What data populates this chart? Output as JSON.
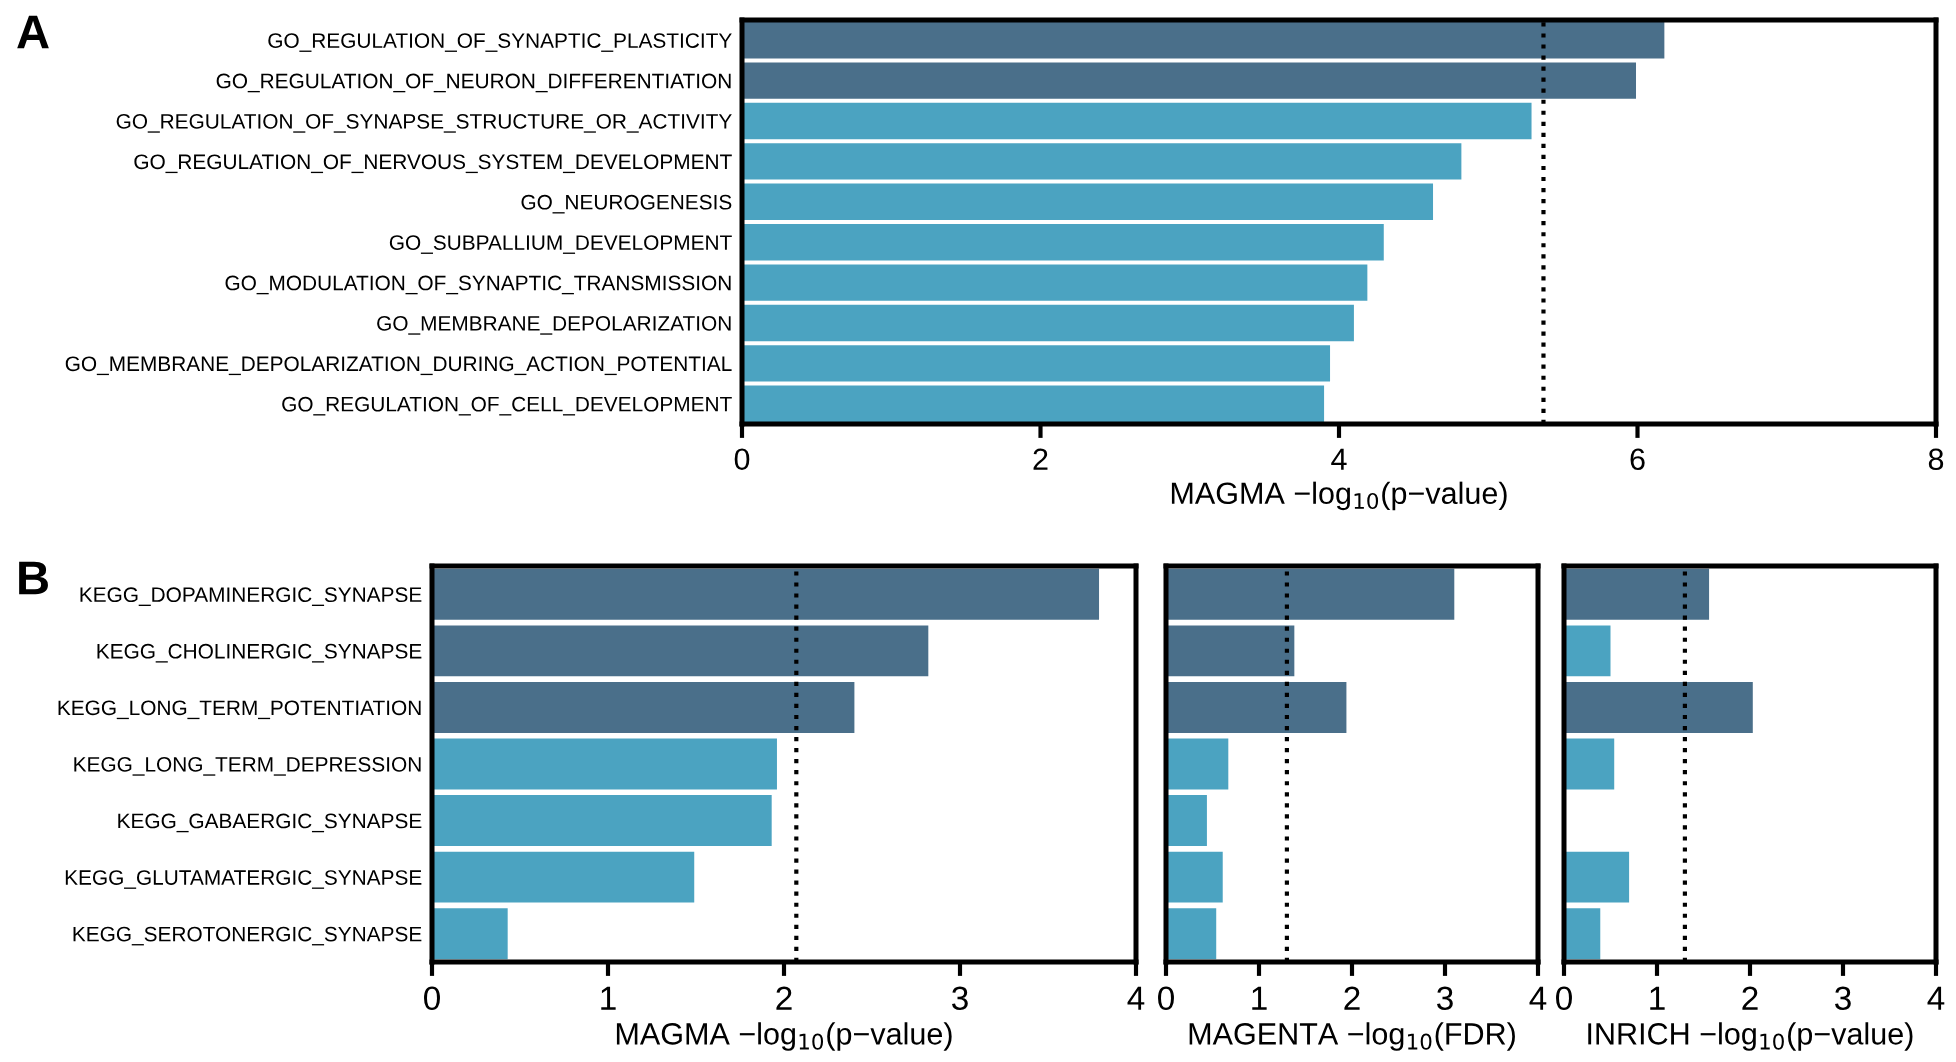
{
  "chart_data": [
    {
      "type": "bar",
      "orientation": "horizontal",
      "title": "A",
      "categories": [
        "GO_REGULATION_OF_SYNAPTIC_PLASTICITY",
        "GO_REGULATION_OF_NEURON_DIFFERENTIATION",
        "GO_REGULATION_OF_SYNAPSE_STRUCTURE_OR_ACTIVITY",
        "GO_REGULATION_OF_NERVOUS_SYSTEM_DEVELOPMENT",
        "GO_NEUROGENESIS",
        "GO_SUBPALLIUM_DEVELOPMENT",
        "GO_MODULATION_OF_SYNAPTIC_TRANSMISSION",
        "GO_MEMBRANE_DEPOLARIZATION",
        "GO_MEMBRANE_DEPOLARIZATION_DURING_ACTION_POTENTIAL",
        "GO_REGULATION_OF_CELL_DEVELOPMENT"
      ],
      "values": [
        6.18,
        5.99,
        5.29,
        4.82,
        4.63,
        4.3,
        4.19,
        4.1,
        3.94,
        3.9
      ],
      "colors": [
        "#4a6f8a",
        "#4a6f8a",
        "#4ba3c1",
        "#4ba3c1",
        "#4ba3c1",
        "#4ba3c1",
        "#4ba3c1",
        "#4ba3c1",
        "#4ba3c1",
        "#4ba3c1"
      ],
      "xlim": [
        0,
        8
      ],
      "xticks": [
        0,
        2,
        4,
        6,
        8
      ],
      "xlabel": "MAGMA −log$_{10}$(p−value)",
      "ref_lines": [
        {
          "axis": "x",
          "value": 5.37,
          "line_style": "dotted",
          "color": "#000000"
        }
      ]
    },
    {
      "type": "bar",
      "orientation": "horizontal",
      "title": "B",
      "categories": [
        "KEGG_DOPAMINERGIC_SYNAPSE",
        "KEGG_CHOLINERGIC_SYNAPSE",
        "KEGG_LONG_TERM_POTENTIATION",
        "KEGG_LONG_TERM_DEPRESSION",
        "KEGG_GABAERGIC_SYNAPSE",
        "KEGG_GLUTAMATERGIC_SYNAPSE",
        "KEGG_SEROTONERGIC_SYNAPSE"
      ],
      "values": [
        3.79,
        2.82,
        2.4,
        1.96,
        1.93,
        1.49,
        0.43
      ],
      "colors": [
        "#4a6f8a",
        "#4a6f8a",
        "#4a6f8a",
        "#4ba3c1",
        "#4ba3c1",
        "#4ba3c1",
        "#4ba3c1"
      ],
      "xlim": [
        0,
        4
      ],
      "xticks": [
        0,
        1,
        2,
        3,
        4
      ],
      "xlabel": "MAGMA −log$_{10}$(p−value)",
      "ref_lines": [
        {
          "axis": "x",
          "value": 2.07,
          "line_style": "dotted",
          "color": "#000000"
        }
      ]
    },
    {
      "type": "bar",
      "orientation": "horizontal",
      "categories": [
        null,
        null,
        null,
        null,
        null,
        null,
        null
      ],
      "values": [
        3.1,
        1.38,
        1.94,
        0.67,
        0.44,
        0.61,
        0.54
      ],
      "colors": [
        "#4a6f8a",
        "#4a6f8a",
        "#4a6f8a",
        "#4ba3c1",
        "#4ba3c1",
        "#4ba3c1",
        "#4ba3c1"
      ],
      "xlim": [
        0,
        4
      ],
      "xticks": [
        0,
        1,
        2,
        3,
        4
      ],
      "xlabel": "MAGENTA −log$_{10}$(FDR)",
      "tick_labels": "x",
      "ref_lines": [
        {
          "axis": "x",
          "value": 1.3,
          "line_style": "dotted",
          "color": "#000000"
        }
      ]
    },
    {
      "type": "bar",
      "orientation": "horizontal",
      "categories": [
        null,
        null,
        null,
        null,
        null,
        null,
        null
      ],
      "values": [
        1.56,
        0.5,
        2.03,
        0.54,
        null,
        0.7,
        0.39
      ],
      "colors": [
        "#4a6f8a",
        "#4ba3c1",
        "#4a6f8a",
        "#4ba3c1",
        "#4ba3c1",
        "#4ba3c1",
        "#4ba3c1"
      ],
      "xlim": [
        0,
        4
      ],
      "xticks": [
        0,
        1,
        2,
        3,
        4
      ],
      "xlabel": "INRICH −log$_{10}$(p−value)",
      "tick_labels": "x",
      "ref_lines": [
        {
          "axis": "x",
          "value": 1.3,
          "line_style": "dotted",
          "color": "#000000"
        }
      ]
    }
  ]
}
